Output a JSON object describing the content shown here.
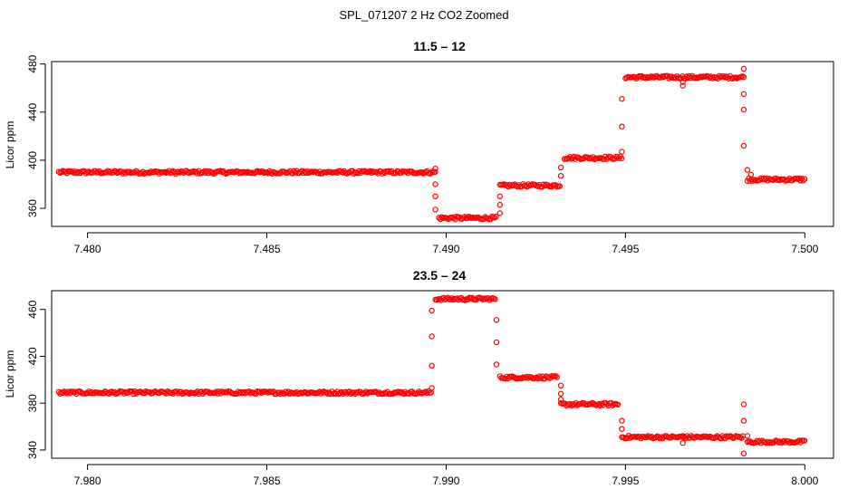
{
  "figure_title": "SPL_071207  2 Hz CO2 Zoomed",
  "chart_data": [
    {
      "type": "scatter",
      "title": "11.5 – 12",
      "xlabel": "",
      "ylabel": "Licor ppm",
      "xlim": [
        7.479,
        7.5008
      ],
      "ylim": [
        345,
        482
      ],
      "x_ticks": [
        7.48,
        7.485,
        7.49,
        7.495,
        7.5
      ],
      "x_tick_labels": [
        "7.480",
        "7.485",
        "7.490",
        "7.495",
        "7.500"
      ],
      "y_ticks": [
        360,
        400,
        440,
        480
      ],
      "y_tick_labels": [
        "360",
        "400",
        "440",
        "480"
      ],
      "color": "#ff0000",
      "marker": "open-circle",
      "series": [
        {
          "segments": [
            {
              "x_start": 7.4792,
              "x_end": 7.4897,
              "y": 390
            },
            {
              "x_start": 7.4898,
              "x_end": 7.4914,
              "y": 352
            },
            {
              "x_start": 7.4915,
              "x_end": 7.4932,
              "y": 379
            },
            {
              "x_start": 7.4933,
              "x_end": 7.4949,
              "y": 402
            },
            {
              "x_start": 7.495,
              "x_end": 7.4983,
              "y": 469
            },
            {
              "x_start": 7.4984,
              "x_end": 7.5,
              "y": 384
            }
          ],
          "outliers": [
            {
              "x": 7.4897,
              "y": 393
            },
            {
              "x": 7.4897,
              "y": 380
            },
            {
              "x": 7.4897,
              "y": 370
            },
            {
              "x": 7.4897,
              "y": 359
            },
            {
              "x": 7.4915,
              "y": 356
            },
            {
              "x": 7.4915,
              "y": 363
            },
            {
              "x": 7.4915,
              "y": 370
            },
            {
              "x": 7.4932,
              "y": 387
            },
            {
              "x": 7.4932,
              "y": 394
            },
            {
              "x": 7.4949,
              "y": 407
            },
            {
              "x": 7.4949,
              "y": 428
            },
            {
              "x": 7.4949,
              "y": 451
            },
            {
              "x": 7.4966,
              "y": 462
            },
            {
              "x": 7.4966,
              "y": 465
            },
            {
              "x": 7.4983,
              "y": 476
            },
            {
              "x": 7.4983,
              "y": 455
            },
            {
              "x": 7.4983,
              "y": 442
            },
            {
              "x": 7.4983,
              "y": 412
            },
            {
              "x": 7.4984,
              "y": 392
            },
            {
              "x": 7.4985,
              "y": 388
            }
          ]
        }
      ]
    },
    {
      "type": "scatter",
      "title": "23.5 – 24",
      "xlabel": "",
      "ylabel": "Licor ppm",
      "xlim": [
        7.979,
        8.0008
      ],
      "ylim": [
        333,
        476
      ],
      "x_ticks": [
        7.98,
        7.985,
        7.99,
        7.995,
        8.0
      ],
      "x_tick_labels": [
        "7.980",
        "7.985",
        "7.990",
        "7.995",
        "8.000"
      ],
      "y_ticks": [
        340,
        380,
        420,
        460
      ],
      "y_tick_labels": [
        "340",
        "380",
        "420",
        "460"
      ],
      "color": "#ff0000",
      "marker": "open-circle",
      "series": [
        {
          "segments": [
            {
              "x_start": 7.9792,
              "x_end": 7.9896,
              "y": 389
            },
            {
              "x_start": 7.9897,
              "x_end": 7.9914,
              "y": 469
            },
            {
              "x_start": 7.9915,
              "x_end": 7.9931,
              "y": 402
            },
            {
              "x_start": 7.9932,
              "x_end": 7.9948,
              "y": 379
            },
            {
              "x_start": 7.9949,
              "x_end": 7.9983,
              "y": 351
            },
            {
              "x_start": 7.9984,
              "x_end": 8.0,
              "y": 347
            }
          ],
          "outliers": [
            {
              "x": 7.9896,
              "y": 393
            },
            {
              "x": 7.9896,
              "y": 412
            },
            {
              "x": 7.9896,
              "y": 437
            },
            {
              "x": 7.9896,
              "y": 459
            },
            {
              "x": 7.9914,
              "y": 451
            },
            {
              "x": 7.9914,
              "y": 432
            },
            {
              "x": 7.9914,
              "y": 413
            },
            {
              "x": 7.9932,
              "y": 395
            },
            {
              "x": 7.9932,
              "y": 388
            },
            {
              "x": 7.9932,
              "y": 383
            },
            {
              "x": 7.9949,
              "y": 365
            },
            {
              "x": 7.9949,
              "y": 358
            },
            {
              "x": 7.9966,
              "y": 352
            },
            {
              "x": 7.9966,
              "y": 346
            },
            {
              "x": 7.9983,
              "y": 379
            },
            {
              "x": 7.9983,
              "y": 365
            },
            {
              "x": 7.9983,
              "y": 337
            },
            {
              "x": 7.9984,
              "y": 352
            }
          ]
        }
      ]
    }
  ]
}
